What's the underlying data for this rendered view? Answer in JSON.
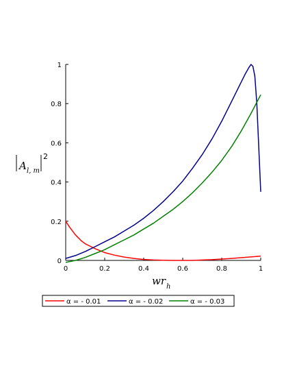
{
  "chart_data": {
    "type": "line",
    "xlabel": {
      "base": "wr",
      "sub": "h"
    },
    "ylabel": {
      "base": "A",
      "sub": "l, m",
      "sup": "2"
    },
    "xlim": [
      0,
      1
    ],
    "ylim": [
      0,
      1
    ],
    "xticks": [
      "0",
      "0.2",
      "0.4",
      "0.6",
      "0.8",
      "1"
    ],
    "yticks": [
      "0",
      "0.2",
      "0.4",
      "0.6",
      "0.8",
      "1"
    ],
    "grid": false,
    "legend_position": "bottom",
    "series": [
      {
        "name": "α = - 0.01",
        "color": "#ff0000",
        "x": [
          0,
          0.02,
          0.05,
          0.08,
          0.1,
          0.15,
          0.2,
          0.25,
          0.3,
          0.35,
          0.4,
          0.45,
          0.5,
          0.55,
          0.6,
          0.65,
          0.7,
          0.75,
          0.8,
          0.85,
          0.9,
          0.95,
          1.0
        ],
        "y": [
          0.2,
          0.17,
          0.13,
          0.1,
          0.085,
          0.06,
          0.04,
          0.027,
          0.017,
          0.01,
          0.005,
          0.002,
          0.001,
          0.0,
          0.0,
          0.0,
          0.002,
          0.004,
          0.007,
          0.01,
          0.014,
          0.018,
          0.022
        ]
      },
      {
        "name": "α = - 0.02",
        "color": "#00008b",
        "x": [
          0,
          0.05,
          0.1,
          0.15,
          0.2,
          0.25,
          0.3,
          0.35,
          0.4,
          0.45,
          0.5,
          0.55,
          0.6,
          0.65,
          0.7,
          0.75,
          0.8,
          0.85,
          0.88,
          0.9,
          0.92,
          0.94,
          0.95,
          0.96,
          0.97,
          0.98,
          0.99,
          1.0
        ],
        "y": [
          0.01,
          0.025,
          0.045,
          0.07,
          0.095,
          0.12,
          0.15,
          0.18,
          0.215,
          0.255,
          0.3,
          0.35,
          0.405,
          0.47,
          0.54,
          0.62,
          0.71,
          0.81,
          0.87,
          0.91,
          0.95,
          0.985,
          1.0,
          0.99,
          0.94,
          0.8,
          0.58,
          0.35
        ]
      },
      {
        "name": "α = - 0.03",
        "color": "#008000",
        "x": [
          0,
          0.05,
          0.1,
          0.15,
          0.2,
          0.25,
          0.3,
          0.35,
          0.4,
          0.45,
          0.5,
          0.55,
          0.6,
          0.65,
          0.7,
          0.75,
          0.8,
          0.85,
          0.9,
          0.95,
          1.0
        ],
        "y": [
          -0.01,
          0.0,
          0.015,
          0.035,
          0.055,
          0.08,
          0.105,
          0.13,
          0.16,
          0.19,
          0.225,
          0.26,
          0.3,
          0.345,
          0.395,
          0.45,
          0.51,
          0.58,
          0.66,
          0.75,
          0.845
        ]
      }
    ]
  }
}
